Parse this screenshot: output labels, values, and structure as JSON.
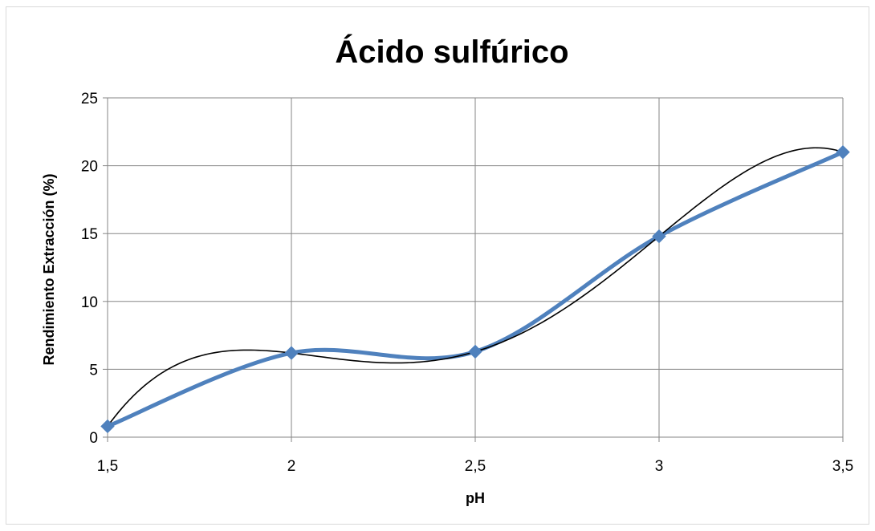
{
  "chart_data": {
    "type": "line",
    "title": "Ácido sulfúrico",
    "xlabel": "pH",
    "ylabel": "Rendimiento Extracción (%)",
    "x": [
      1.5,
      2,
      2.5,
      3,
      3.5
    ],
    "x_tick_labels": [
      "1,5",
      "2",
      "2,5",
      "3",
      "3,5"
    ],
    "xlim": [
      1.5,
      3.5
    ],
    "y_ticks": [
      0,
      5,
      10,
      15,
      20,
      25
    ],
    "y_tick_labels": [
      "0",
      "5",
      "10",
      "15",
      "20",
      "25"
    ],
    "ylim": [
      0,
      25
    ],
    "grid": true,
    "series": [
      {
        "values": [
          0.8,
          6.2,
          6.3,
          14.8,
          21.0
        ],
        "color": "#4f81bd",
        "marker": "diamond",
        "smooth": true
      },
      {
        "values": [
          0.8,
          6.2,
          6.3,
          14.8,
          21.0
        ],
        "color": "#000000",
        "marker": "none",
        "kind": "polynomial trendline",
        "degree": 4
      }
    ]
  }
}
